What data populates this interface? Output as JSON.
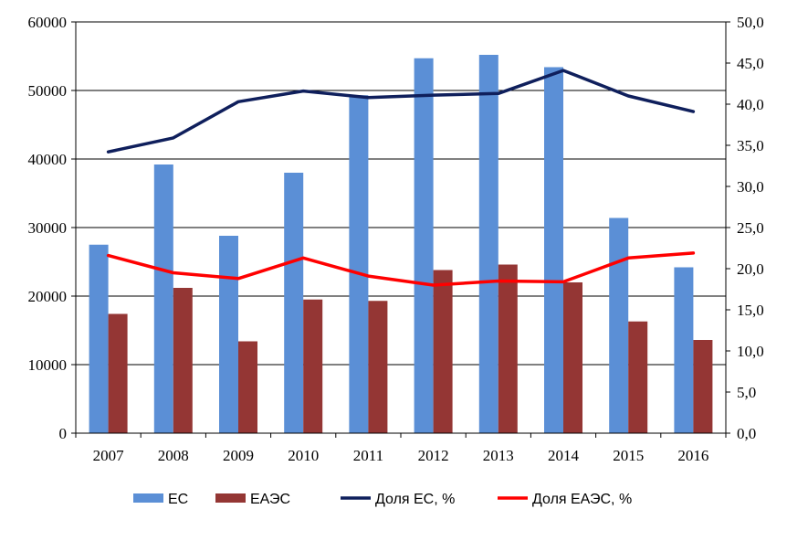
{
  "chart_data": {
    "type": "bar",
    "categories": [
      "2007",
      "2008",
      "2009",
      "2010",
      "2011",
      "2012",
      "2013",
      "2014",
      "2015",
      "2016"
    ],
    "bar_series": [
      {
        "name": "ЕС",
        "color": "#5b8fd6",
        "values": [
          27500,
          39200,
          28800,
          38000,
          49300,
          54700,
          55200,
          53400,
          31400,
          24200
        ]
      },
      {
        "name": "ЕАЭС",
        "color": "#943634",
        "values": [
          17400,
          21200,
          13400,
          19500,
          19300,
          23800,
          24600,
          22000,
          16300,
          13600
        ]
      }
    ],
    "line_series": [
      {
        "name": "Доля ЕС, %",
        "color": "#0f1f5c",
        "axis": "right",
        "values": [
          34.2,
          35.9,
          40.3,
          41.6,
          40.8,
          41.1,
          41.3,
          44.1,
          41.0,
          39.1
        ]
      },
      {
        "name": "Доля ЕАЭС, %",
        "color": "#ff0000",
        "axis": "right",
        "values": [
          21.6,
          19.5,
          18.8,
          21.3,
          19.1,
          18.0,
          18.5,
          18.4,
          21.3,
          21.9
        ]
      }
    ],
    "y_left": {
      "min": 0,
      "max": 60000,
      "step": 10000,
      "tick_labels": [
        "0",
        "10000",
        "20000",
        "30000",
        "40000",
        "50000",
        "60000"
      ]
    },
    "y_right": {
      "min": 0,
      "max": 50,
      "step": 5,
      "tick_labels": [
        "0,0",
        "5,0",
        "10,0",
        "15,0",
        "20,0",
        "25,0",
        "30,0",
        "35,0",
        "40,0",
        "45,0",
        "50,0"
      ]
    },
    "grid": true,
    "legend_position": "bottom",
    "title": "",
    "xlabel": "",
    "ylabel": ""
  }
}
